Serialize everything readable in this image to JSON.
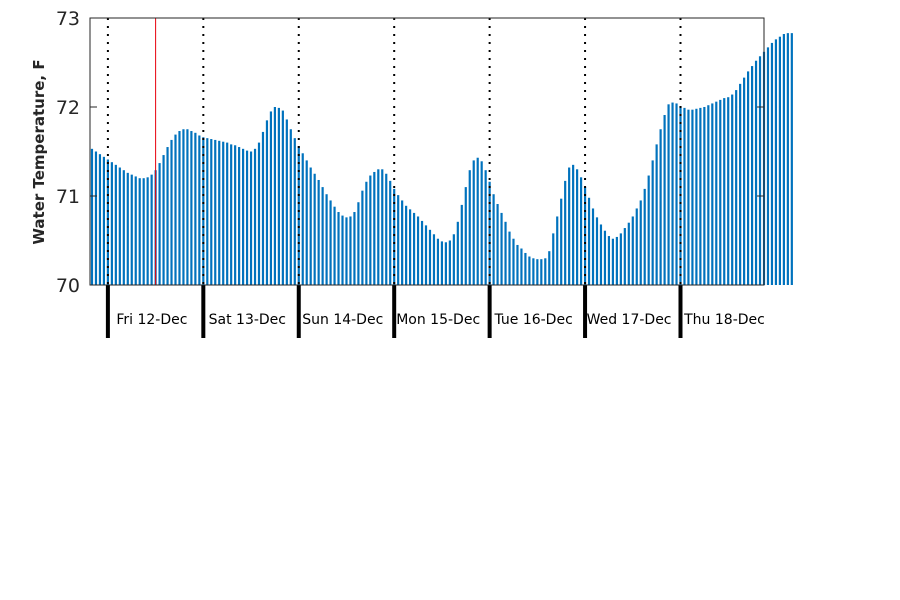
{
  "chart_data": {
    "type": "bar",
    "ylabel": "Water Temperature, F",
    "ylim": [
      70,
      73
    ],
    "yticks": [
      70,
      71,
      72,
      73
    ],
    "x_start": "2014-12-11T19:30",
    "x_end": "2014-12-18T21:00",
    "bar_interval_hours": 1,
    "day_labels": [
      {
        "date": "2014-12-12",
        "label": "Fri 12-Dec"
      },
      {
        "date": "2014-12-13",
        "label": "Sat 13-Dec"
      },
      {
        "date": "2014-12-14",
        "label": "Sun 14-Dec"
      },
      {
        "date": "2014-12-15",
        "label": "Mon 15-Dec"
      },
      {
        "date": "2014-12-16",
        "label": "Tue 16-Dec"
      },
      {
        "date": "2014-12-17",
        "label": "Wed 17-Dec"
      },
      {
        "date": "2014-12-18",
        "label": "Thu 18-Dec"
      }
    ],
    "marker_time": "2014-12-12T12:00",
    "values": [
      71.53,
      71.5,
      71.47,
      71.44,
      71.41,
      71.38,
      71.35,
      71.32,
      71.29,
      71.26,
      71.24,
      71.22,
      71.2,
      71.2,
      71.21,
      71.24,
      71.29,
      71.37,
      71.46,
      71.55,
      71.63,
      71.69,
      71.73,
      71.75,
      71.75,
      71.73,
      71.71,
      71.68,
      71.66,
      71.65,
      71.64,
      71.63,
      71.62,
      71.61,
      71.6,
      71.58,
      71.57,
      71.55,
      71.53,
      71.51,
      71.5,
      71.53,
      71.6,
      71.72,
      71.85,
      71.95,
      72.0,
      71.99,
      71.96,
      71.86,
      71.75,
      71.65,
      71.56,
      71.48,
      71.4,
      71.32,
      71.25,
      71.18,
      71.1,
      71.02,
      70.95,
      70.88,
      70.82,
      70.78,
      70.76,
      70.77,
      70.82,
      70.93,
      71.06,
      71.16,
      71.23,
      71.27,
      71.3,
      71.3,
      71.25,
      71.17,
      71.08,
      71.01,
      70.95,
      70.89,
      70.85,
      70.81,
      70.77,
      70.72,
      70.67,
      70.62,
      70.57,
      70.52,
      70.49,
      70.48,
      70.5,
      70.57,
      70.71,
      70.9,
      71.1,
      71.29,
      71.4,
      71.43,
      71.39,
      71.29,
      71.16,
      71.02,
      70.91,
      70.81,
      70.71,
      70.6,
      70.52,
      70.45,
      70.41,
      70.36,
      70.32,
      70.3,
      70.29,
      70.29,
      70.3,
      70.38,
      70.58,
      70.77,
      70.97,
      71.17,
      71.32,
      71.35,
      71.3,
      71.21,
      71.1,
      70.98,
      70.86,
      70.76,
      70.68,
      70.61,
      70.55,
      70.52,
      70.54,
      70.58,
      70.64,
      70.7,
      70.77,
      70.86,
      70.95,
      71.08,
      71.23,
      71.4,
      71.58,
      71.75,
      71.91,
      72.03,
      72.05,
      72.04,
      72.01,
      71.99,
      71.97,
      71.97,
      71.98,
      71.99,
      72.0,
      72.02,
      72.04,
      72.06,
      72.08,
      72.1,
      72.11,
      72.14,
      72.19,
      72.26,
      72.33,
      72.4,
      72.46,
      72.52,
      72.57,
      72.62,
      72.67,
      72.72,
      72.76,
      72.79,
      72.82,
      72.83,
      72.83
    ]
  }
}
